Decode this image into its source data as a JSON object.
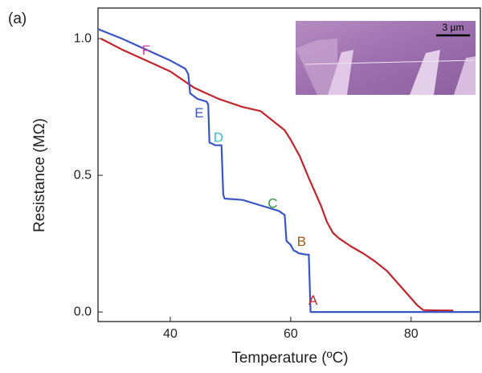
{
  "chart_data": {
    "type": "line",
    "panel_label": "(a)",
    "x_label": "Temperature (ºC)",
    "y_label": "Resistance (MΩ)",
    "inset_scale_label": "3 µm",
    "xlim": [
      28,
      91.5
    ],
    "xticks": [
      40,
      60,
      80
    ],
    "ylim": [
      -0.035,
      1.112
    ],
    "yticks": [
      {
        "value": 0,
        "label": "0.0"
      },
      {
        "value": 0.5,
        "label": "0.5"
      },
      {
        "value": 1.0,
        "label": "1.0"
      }
    ],
    "series": [
      {
        "color": "#c0242c",
        "x": [
          28.5,
          32,
          36,
          40,
          44,
          48,
          52,
          55,
          57,
          59,
          60,
          61.5,
          63,
          64,
          65,
          66,
          67,
          68,
          70,
          72,
          74,
          76,
          78,
          80,
          81,
          82,
          84,
          87
        ],
        "values": [
          1.0,
          0.96,
          0.92,
          0.88,
          0.82,
          0.78,
          0.75,
          0.735,
          0.7,
          0.665,
          0.63,
          0.57,
          0.49,
          0.44,
          0.39,
          0.33,
          0.29,
          0.27,
          0.24,
          0.215,
          0.185,
          0.15,
          0.1,
          0.05,
          0.025,
          0.007,
          0.006,
          0.005
        ]
      },
      {
        "color": "#3a55c4",
        "x": [
          28,
          32,
          36,
          40,
          42.5,
          43,
          43.3,
          44.5,
          46,
          46.3,
          46.5,
          47.5,
          48.5,
          48.8,
          49,
          52,
          55,
          58,
          59,
          59.3,
          60,
          60.5,
          61,
          61.3,
          62.5,
          63,
          63.3,
          70,
          80,
          91.5
        ],
        "values": [
          1.035,
          1.0,
          0.96,
          0.92,
          0.89,
          0.87,
          0.8,
          0.78,
          0.77,
          0.76,
          0.62,
          0.61,
          0.61,
          0.43,
          0.415,
          0.41,
          0.39,
          0.37,
          0.355,
          0.26,
          0.245,
          0.225,
          0.22,
          0.215,
          0.21,
          0.21,
          0,
          0,
          0,
          0
        ]
      }
    ],
    "annotations": [
      {
        "text": "F",
        "x": 36,
        "y": 0.955,
        "color": "#d63c9c"
      },
      {
        "text": "E",
        "x": 44.8,
        "y": 0.725,
        "color": "#3a55c4"
      },
      {
        "text": "D",
        "x": 48,
        "y": 0.635,
        "color": "#3cb8d8"
      },
      {
        "text": "C",
        "x": 57,
        "y": 0.395,
        "color": "#2a9a3a"
      },
      {
        "text": "B",
        "x": 61.8,
        "y": 0.255,
        "color": "#9a5a22"
      },
      {
        "text": "A",
        "x": 63.7,
        "y": 0.04,
        "color": "#c0242c"
      }
    ]
  }
}
